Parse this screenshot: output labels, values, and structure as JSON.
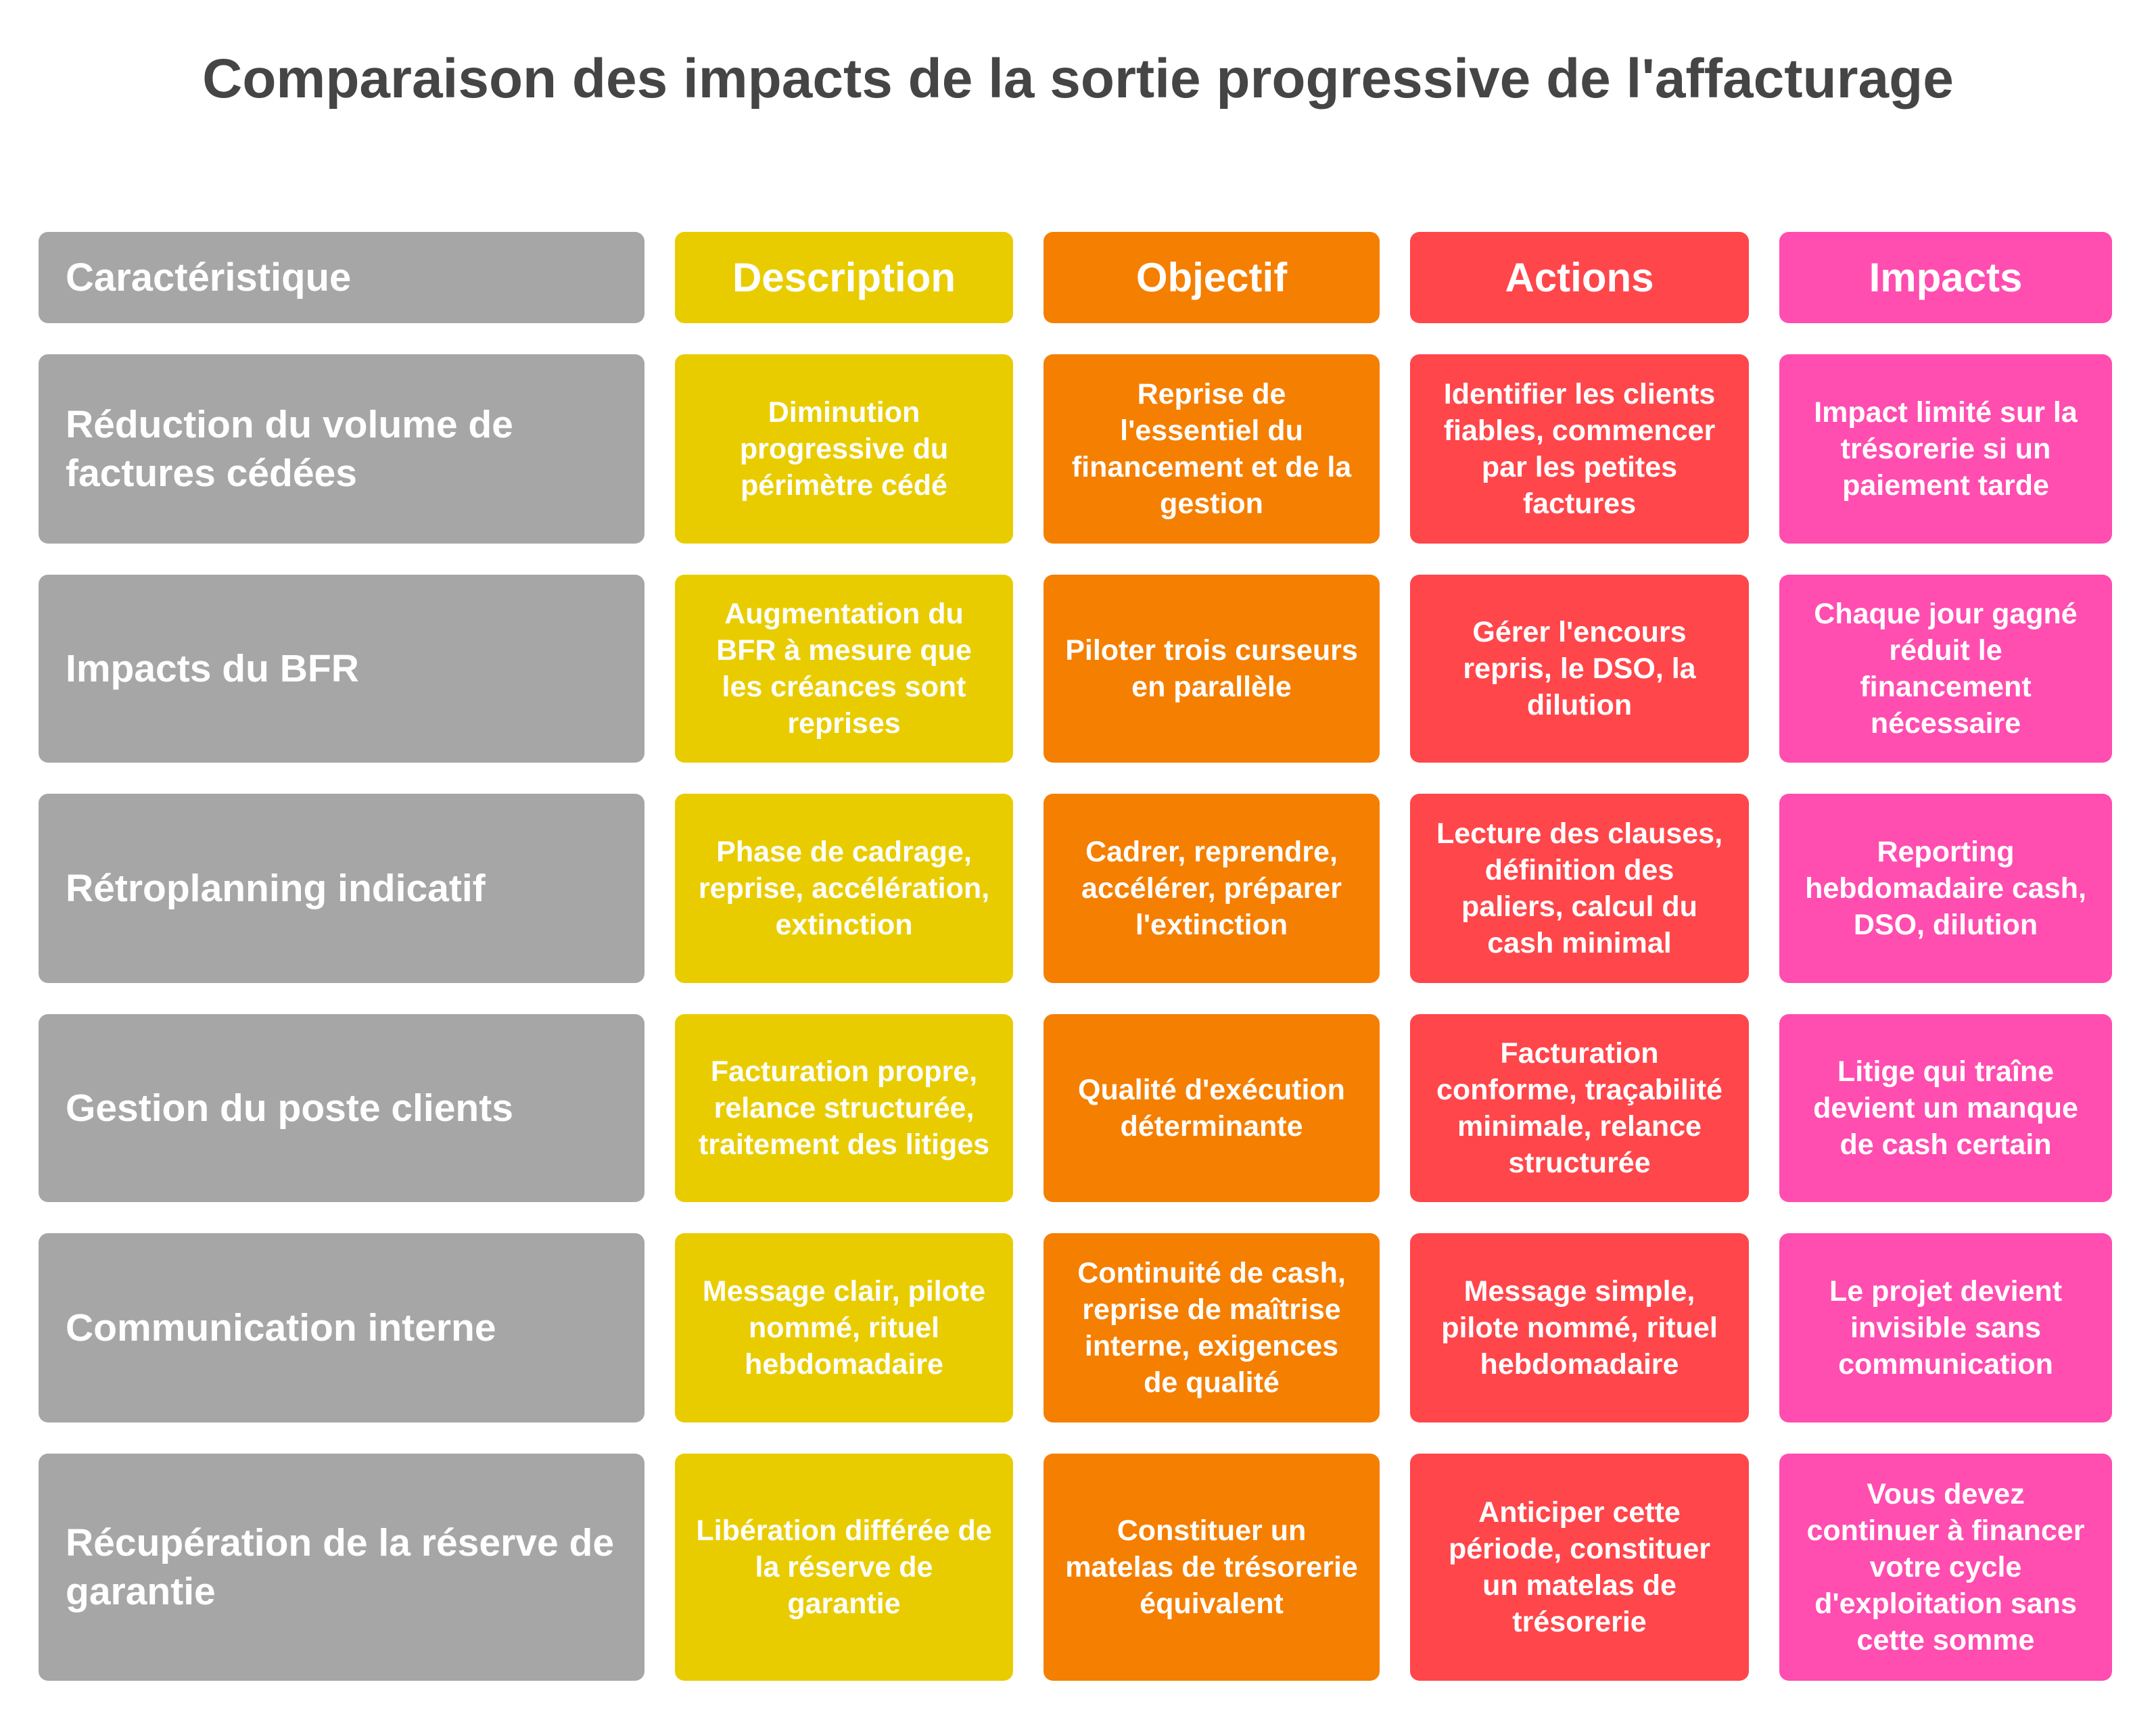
{
  "title": "Comparaison des impacts de la sortie progressive de l'affacturage",
  "colors": {
    "caracteristique": "#a6a6a6",
    "description": "#e9cc00",
    "objectif": "#f57f00",
    "actions": "#ff464b",
    "impacts": "#ff4db0",
    "title": "#454545"
  },
  "headers": [
    "Caractéristique",
    "Description",
    "Objectif",
    "Actions",
    "Impacts"
  ],
  "rows": [
    [
      "Réduction du volume de factures cédées",
      "Diminution progressive du périmètre cédé",
      "Reprise de l'essentiel du financement et de la gestion",
      "Identifier les clients fiables, commencer par les petites factures",
      "Impact limité sur la trésorerie si un paiement tarde"
    ],
    [
      "Impacts du BFR",
      "Augmentation du BFR à mesure que les créances sont reprises",
      "Piloter trois curseurs en parallèle",
      "Gérer l'encours repris, le DSO, la dilution",
      "Chaque jour gagné réduit le financement nécessaire"
    ],
    [
      "Rétroplanning indicatif",
      "Phase de cadrage, reprise, accélération, extinction",
      "Cadrer, reprendre, accélérer, préparer l'extinction",
      "Lecture des clauses, définition des paliers, calcul du cash minimal",
      "Reporting hebdomadaire cash, DSO, dilution"
    ],
    [
      "Gestion du poste clients",
      "Facturation propre, relance structurée, traitement des litiges",
      "Qualité d'exécution déterminante",
      "Facturation conforme, traçabilité minimale, relance structurée",
      "Litige qui traîne devient un manque de cash certain"
    ],
    [
      "Communication interne",
      "Message clair, pilote nommé, rituel hebdomadaire",
      "Continuité de cash, reprise de maîtrise interne, exigences de qualité",
      "Message simple, pilote nommé, rituel hebdomadaire",
      "Le projet devient invisible sans communication"
    ],
    [
      "Récupération de la réserve de garantie",
      "Libération différée de la réserve de garantie",
      "Constituer un matelas de trésorerie équivalent",
      "Anticiper cette période, constituer un matelas de trésorerie",
      "Vous devez continuer à financer votre cycle d'exploitation sans cette somme"
    ]
  ]
}
